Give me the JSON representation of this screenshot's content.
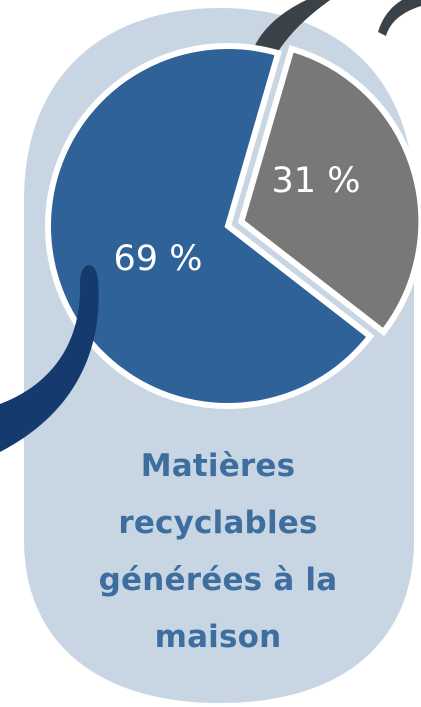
{
  "chart_data": {
    "type": "pie",
    "title_lines": [
      "Matières",
      "recyclables",
      "générées à la",
      "maison"
    ],
    "slices": [
      {
        "value": 69,
        "label": "69 %",
        "color": "#2e6299"
      },
      {
        "value": 31,
        "label": "31 %",
        "color": "#787878"
      }
    ],
    "slice_separator_color": "#ffffff"
  },
  "colors": {
    "background_shape": "#c8d5e2",
    "title_text": "#3e6e9f",
    "label_text": "#ffffff",
    "swoosh_top": "#3b4248",
    "swoosh_left": "#153b6e"
  }
}
